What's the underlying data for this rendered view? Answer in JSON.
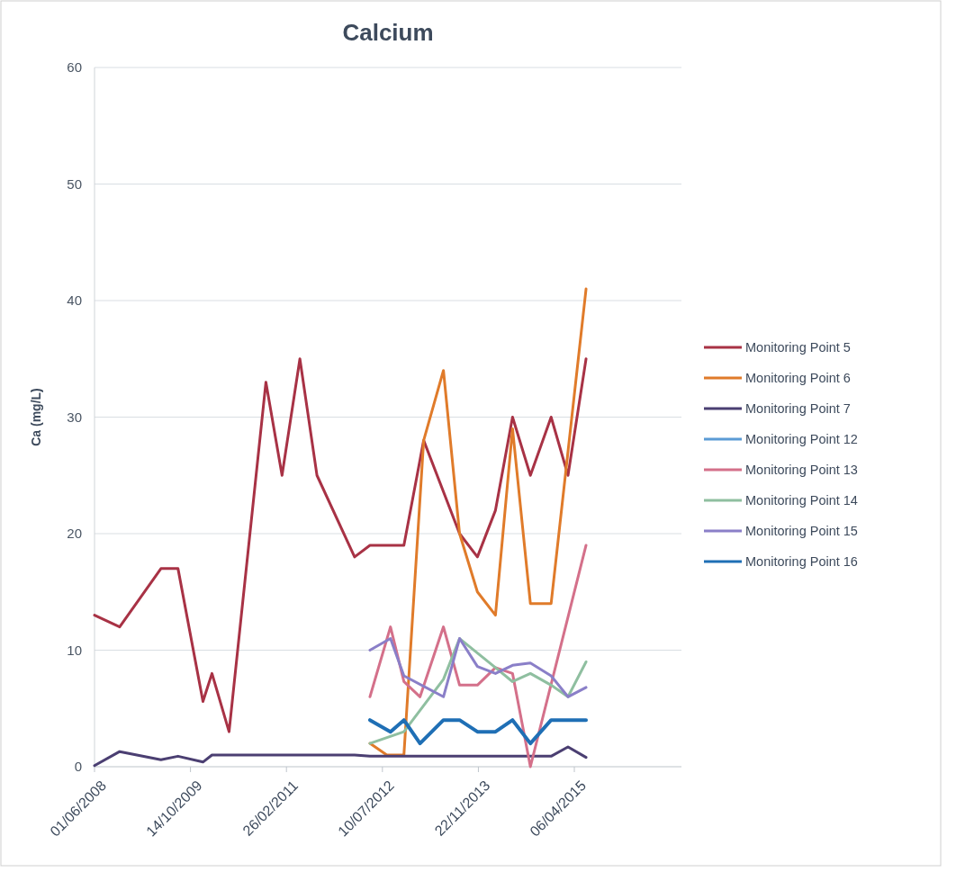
{
  "chart_data": {
    "type": "line",
    "title": "Calcium",
    "ylabel": "Ca (mg/L)",
    "xlim": [
      "2008-06-01",
      "2016-10-15"
    ],
    "xticks": [
      {
        "value": "2008-06-01",
        "label": "01/06/2008"
      },
      {
        "value": "2009-10-14",
        "label": "14/10/2009"
      },
      {
        "value": "2011-02-26",
        "label": "26/02/2011"
      },
      {
        "value": "2012-07-10",
        "label": "10/07/2012"
      },
      {
        "value": "2013-11-22",
        "label": "22/11/2013"
      },
      {
        "value": "2015-04-06",
        "label": "06/04/2015"
      }
    ],
    "ylim": [
      0,
      60
    ],
    "yticks": [
      0,
      10,
      20,
      30,
      40,
      50,
      60
    ],
    "grid": "y",
    "legend": "right",
    "line_style": "solid",
    "series": [
      {
        "name": "Monitoring Point 5",
        "color": "#a83245",
        "x": [
          "2008-06-01",
          "2008-10-10",
          "2009-05-13",
          "2009-08-10",
          "2009-12-18",
          "2010-02-03",
          "2010-05-03",
          "2010-11-11",
          "2011-02-03",
          "2011-05-07",
          "2011-08-04",
          "2012-02-16",
          "2012-05-06",
          "2012-10-30",
          "2013-02-10",
          "2013-08-16",
          "2013-11-17",
          "2014-02-19",
          "2014-05-19",
          "2014-08-20",
          "2014-12-06",
          "2015-03-04",
          "2015-06-06"
        ],
        "values": [
          13,
          12,
          17,
          17,
          5.6,
          8,
          3,
          33,
          25,
          35,
          25,
          18,
          19,
          19,
          28,
          20,
          18,
          22,
          30,
          25,
          30,
          25,
          35
        ]
      },
      {
        "name": "Monitoring Point 6",
        "color": "#e07b2a",
        "x": [
          "2012-05-06",
          "2012-08-02",
          "2012-10-30",
          "2013-02-10",
          "2013-05-24",
          "2013-08-16",
          "2013-11-17",
          "2014-02-19",
          "2014-05-19",
          "2014-08-20",
          "2014-12-06",
          "2015-06-06"
        ],
        "values": [
          2,
          1,
          1,
          28,
          34,
          20,
          15,
          13,
          29,
          14,
          14,
          41
        ]
      },
      {
        "name": "Monitoring Point 7",
        "color": "#4b3f72",
        "x": [
          "2008-06-01",
          "2008-10-10",
          "2009-05-13",
          "2009-08-10",
          "2009-12-18",
          "2010-02-03",
          "2010-05-03",
          "2010-11-11",
          "2011-02-03",
          "2011-05-07",
          "2011-08-04",
          "2012-02-16",
          "2012-05-06",
          "2012-10-30",
          "2013-02-10",
          "2013-08-16",
          "2013-11-17",
          "2014-02-19",
          "2014-05-19",
          "2014-08-20",
          "2014-12-06",
          "2015-03-04",
          "2015-06-06"
        ],
        "values": [
          0.1,
          1.3,
          0.6,
          0.9,
          0.4,
          1,
          1,
          1,
          1,
          1,
          1,
          1,
          0.9,
          0.9,
          0.9,
          0.9,
          0.9,
          0.9,
          0.9,
          0.9,
          0.9,
          1.7,
          0.8
        ]
      },
      {
        "name": "Monitoring Point 12",
        "color": "#5b9bd5"
      },
      {
        "name": "Monitoring Point 13",
        "color": "#d4708a",
        "x": [
          "2012-05-06",
          "2012-08-21",
          "2012-10-30",
          "2013-01-22",
          "2013-05-24",
          "2013-08-16",
          "2013-11-17",
          "2014-02-19",
          "2014-05-19",
          "2014-08-20",
          "2015-06-06"
        ],
        "values": [
          6,
          12,
          7.3,
          6,
          12,
          7,
          7,
          8.5,
          8,
          0,
          19
        ]
      },
      {
        "name": "Monitoring Point 14",
        "color": "#8fbfa0",
        "x": [
          "2012-05-06",
          "2012-10-30",
          "2013-05-24",
          "2013-08-16",
          "2014-02-19",
          "2014-05-19",
          "2014-08-20",
          "2014-12-06",
          "2015-03-04",
          "2015-06-06"
        ],
        "values": [
          2,
          3,
          7.5,
          11,
          8.5,
          7.3,
          8,
          7,
          6,
          9
        ]
      },
      {
        "name": "Monitoring Point 15",
        "color": "#8a7fc8",
        "x": [
          "2012-05-06",
          "2012-08-21",
          "2012-10-30",
          "2013-05-24",
          "2013-08-16",
          "2013-11-17",
          "2014-02-19",
          "2014-05-19",
          "2014-08-20",
          "2014-12-06",
          "2015-03-04",
          "2015-06-06"
        ],
        "values": [
          10,
          11,
          7.8,
          6,
          11,
          8.6,
          8,
          8.7,
          8.9,
          7.8,
          6,
          6.8
        ]
      },
      {
        "name": "Monitoring Point 16",
        "color": "#1f6fb5",
        "x": [
          "2012-05-06",
          "2012-08-21",
          "2012-10-30",
          "2013-01-22",
          "2013-05-24",
          "2013-08-16",
          "2013-11-17",
          "2014-02-19",
          "2014-05-19",
          "2014-08-20",
          "2014-12-06",
          "2015-06-06"
        ],
        "values": [
          4,
          3,
          4,
          2,
          4,
          4,
          3,
          3,
          4,
          2,
          4,
          4
        ]
      }
    ]
  }
}
